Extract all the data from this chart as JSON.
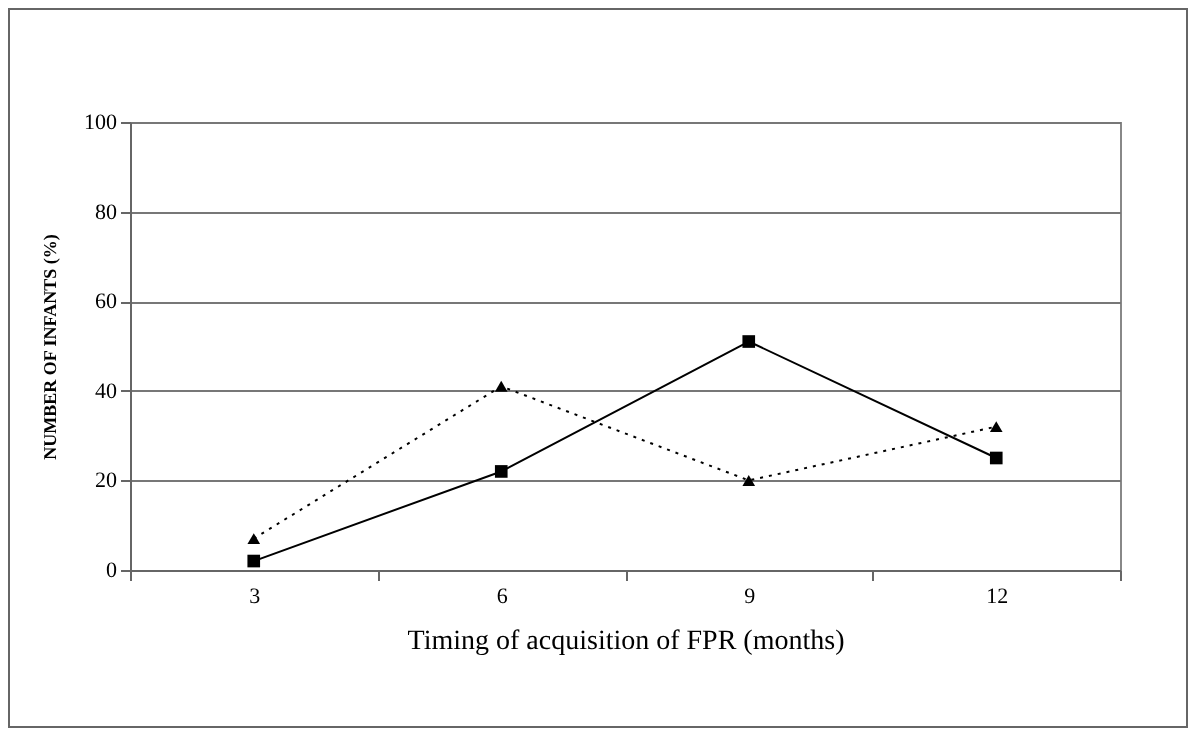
{
  "chart_data": {
    "type": "line",
    "xlabel": "Timing of acquisition of FPR (months)",
    "ylabel": "NUMBER OF INFANTS (%)",
    "categories": [
      "3",
      "6",
      "9",
      "12"
    ],
    "series": [
      {
        "color": "#000000",
        "marker": "square",
        "line_style": "solid",
        "values": [
          2,
          22,
          51,
          25
        ]
      },
      {
        "color": "#000000",
        "marker": "triangle",
        "line_style": "dotted",
        "values": [
          7,
          41,
          20,
          32
        ]
      }
    ],
    "ylim": [
      0,
      100
    ],
    "yticks": [
      0,
      20,
      40,
      60,
      80,
      100
    ],
    "grid": "y"
  }
}
